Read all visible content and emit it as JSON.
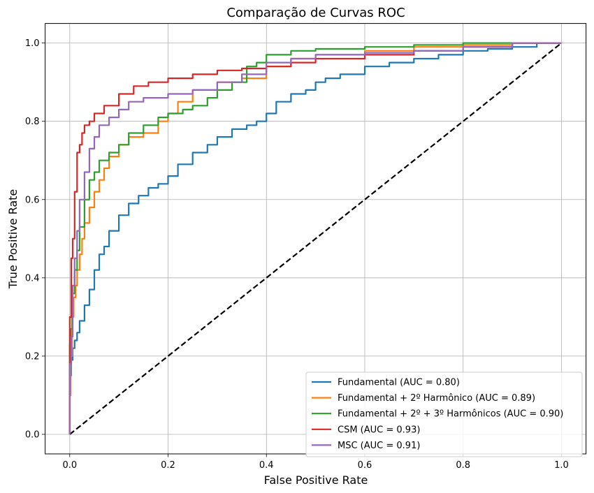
{
  "chart_data": {
    "type": "line",
    "title": "Comparação de Curvas ROC",
    "xlabel": "False Positive Rate",
    "ylabel": "True Positive Rate",
    "xlim": [
      -0.05,
      1.05
    ],
    "ylim": [
      -0.05,
      1.05
    ],
    "xticks": [
      0.0,
      0.2,
      0.4,
      0.6,
      0.8,
      1.0
    ],
    "yticks": [
      0.0,
      0.2,
      0.4,
      0.6,
      0.8,
      1.0
    ],
    "xtick_labels": [
      "0.0",
      "0.2",
      "0.4",
      "0.6",
      "0.8",
      "1.0"
    ],
    "ytick_labels": [
      "0.0",
      "0.2",
      "0.4",
      "0.6",
      "0.8",
      "1.0"
    ],
    "grid": true,
    "legend_position": "lower-right",
    "series": [
      {
        "name": "Fundamental (AUC = 0.80)",
        "color": "#1f77b4",
        "x": [
          0,
          0.003,
          0.006,
          0.01,
          0.015,
          0.02,
          0.03,
          0.04,
          0.05,
          0.06,
          0.07,
          0.08,
          0.1,
          0.12,
          0.14,
          0.16,
          0.18,
          0.2,
          0.22,
          0.25,
          0.28,
          0.3,
          0.33,
          0.36,
          0.38,
          0.4,
          0.42,
          0.45,
          0.48,
          0.5,
          0.52,
          0.55,
          0.6,
          0.65,
          0.7,
          0.75,
          0.8,
          0.85,
          0.9,
          0.95,
          1.0
        ],
        "y": [
          0,
          0.15,
          0.19,
          0.22,
          0.24,
          0.26,
          0.29,
          0.33,
          0.37,
          0.42,
          0.46,
          0.48,
          0.52,
          0.56,
          0.59,
          0.61,
          0.63,
          0.64,
          0.66,
          0.69,
          0.72,
          0.74,
          0.76,
          0.78,
          0.79,
          0.8,
          0.82,
          0.85,
          0.87,
          0.88,
          0.9,
          0.91,
          0.92,
          0.94,
          0.95,
          0.96,
          0.97,
          0.98,
          0.985,
          0.99,
          1.0
        ]
      },
      {
        "name": "Fundamental + 2º Harmônico (AUC = 0.89)",
        "color": "#ff7f0e",
        "x": [
          0,
          0.002,
          0.005,
          0.008,
          0.012,
          0.015,
          0.02,
          0.025,
          0.03,
          0.04,
          0.05,
          0.06,
          0.07,
          0.08,
          0.1,
          0.12,
          0.15,
          0.18,
          0.2,
          0.22,
          0.25,
          0.3,
          0.35,
          0.4,
          0.45,
          0.5,
          0.6,
          0.7,
          0.8,
          0.9,
          1.0
        ],
        "y": [
          0,
          0.1,
          0.2,
          0.3,
          0.35,
          0.38,
          0.42,
          0.46,
          0.5,
          0.54,
          0.58,
          0.62,
          0.65,
          0.68,
          0.71,
          0.74,
          0.76,
          0.77,
          0.8,
          0.82,
          0.85,
          0.88,
          0.9,
          0.91,
          0.94,
          0.96,
          0.97,
          0.98,
          0.99,
          0.995,
          1.0
        ]
      },
      {
        "name": "Fundamental + 2º + 3º Harmônicos (AUC = 0.90)",
        "color": "#2ca02c",
        "x": [
          0,
          0.002,
          0.005,
          0.01,
          0.015,
          0.02,
          0.03,
          0.04,
          0.05,
          0.06,
          0.08,
          0.1,
          0.12,
          0.15,
          0.18,
          0.2,
          0.23,
          0.25,
          0.28,
          0.3,
          0.33,
          0.36,
          0.38,
          0.4,
          0.45,
          0.5,
          0.6,
          0.7,
          0.8,
          0.9,
          1.0
        ],
        "y": [
          0,
          0.23,
          0.27,
          0.36,
          0.42,
          0.47,
          0.53,
          0.6,
          0.65,
          0.67,
          0.7,
          0.72,
          0.74,
          0.77,
          0.79,
          0.81,
          0.82,
          0.83,
          0.84,
          0.86,
          0.88,
          0.9,
          0.94,
          0.95,
          0.97,
          0.98,
          0.985,
          0.99,
          0.995,
          1.0,
          1.0
        ]
      },
      {
        "name": "CSM (AUC = 0.93)",
        "color": "#d62728",
        "x": [
          0,
          0.003,
          0.006,
          0.01,
          0.015,
          0.02,
          0.025,
          0.03,
          0.04,
          0.05,
          0.07,
          0.1,
          0.13,
          0.16,
          0.2,
          0.25,
          0.3,
          0.35,
          0.4,
          0.45,
          0.5,
          0.6,
          0.7,
          0.8,
          0.9,
          1.0
        ],
        "y": [
          0,
          0.3,
          0.45,
          0.5,
          0.62,
          0.72,
          0.74,
          0.77,
          0.79,
          0.8,
          0.82,
          0.84,
          0.87,
          0.89,
          0.9,
          0.91,
          0.92,
          0.93,
          0.935,
          0.94,
          0.95,
          0.96,
          0.97,
          0.98,
          0.99,
          1.0
        ]
      },
      {
        "name": "MSC (AUC = 0.91)",
        "color": "#9467bd",
        "x": [
          0,
          0.003,
          0.006,
          0.01,
          0.015,
          0.02,
          0.03,
          0.04,
          0.05,
          0.06,
          0.08,
          0.1,
          0.12,
          0.15,
          0.2,
          0.25,
          0.3,
          0.35,
          0.4,
          0.45,
          0.5,
          0.6,
          0.7,
          0.8,
          0.9,
          1.0
        ],
        "y": [
          0,
          0.18,
          0.25,
          0.38,
          0.45,
          0.52,
          0.6,
          0.67,
          0.73,
          0.76,
          0.79,
          0.81,
          0.83,
          0.85,
          0.86,
          0.87,
          0.88,
          0.9,
          0.92,
          0.95,
          0.96,
          0.97,
          0.975,
          0.98,
          0.99,
          1.0
        ]
      }
    ],
    "reference_line": {
      "x": [
        0,
        1
      ],
      "y": [
        0,
        1
      ],
      "color": "#000000",
      "style": "dashed"
    }
  }
}
